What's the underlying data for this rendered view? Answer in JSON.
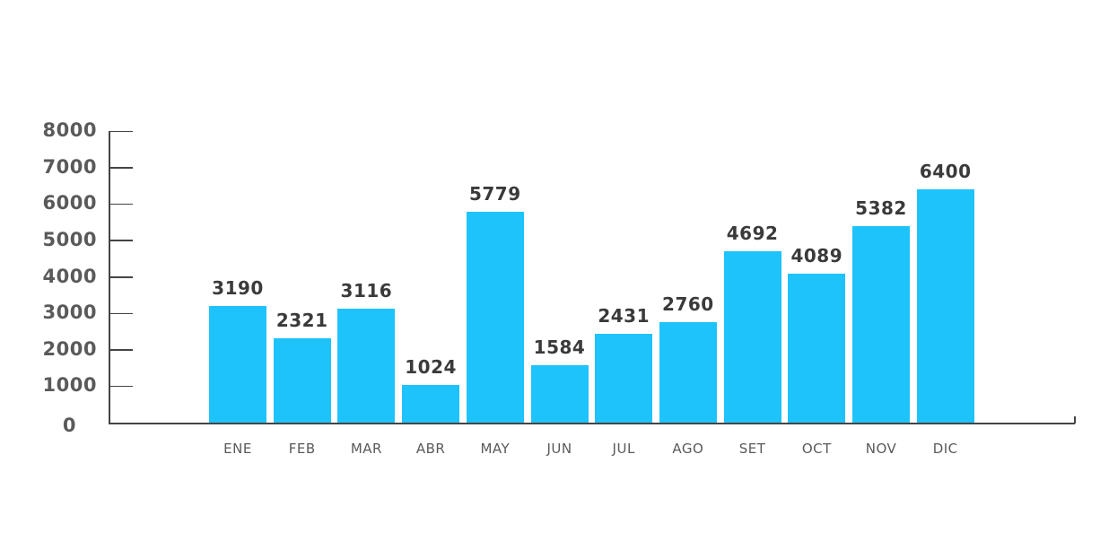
{
  "chart_data": {
    "type": "bar",
    "title": "",
    "xlabel": "",
    "ylabel": "",
    "categories": [
      "ENE",
      "FEB",
      "MAR",
      "ABR",
      "MAY",
      "JUN",
      "JUL",
      "AGO",
      "SET",
      "OCT",
      "NOV",
      "DIC"
    ],
    "values": [
      3190,
      2321,
      3116,
      1024,
      5779,
      1584,
      2431,
      2760,
      4692,
      4089,
      5382,
      6400
    ],
    "data_labels": [
      "3190",
      "2321",
      "3116",
      "1024",
      "5779",
      "1584",
      "2431",
      "2760",
      "4692",
      "4089",
      "5382",
      "6400"
    ],
    "ylim": [
      0,
      8000
    ],
    "yticks": [
      0,
      1000,
      2000,
      3000,
      4000,
      5000,
      6000,
      7000,
      8000
    ],
    "ytick_labels": [
      "0",
      "1000",
      "2000",
      "3000",
      "4000",
      "5000",
      "6000",
      "7000",
      "8000"
    ],
    "grid": false,
    "legend": null,
    "colors": {
      "bar": "#1ec3fc",
      "axis": "#444444",
      "label_text": "#3a3a3a",
      "tick_text": "#5a5a5a"
    }
  }
}
